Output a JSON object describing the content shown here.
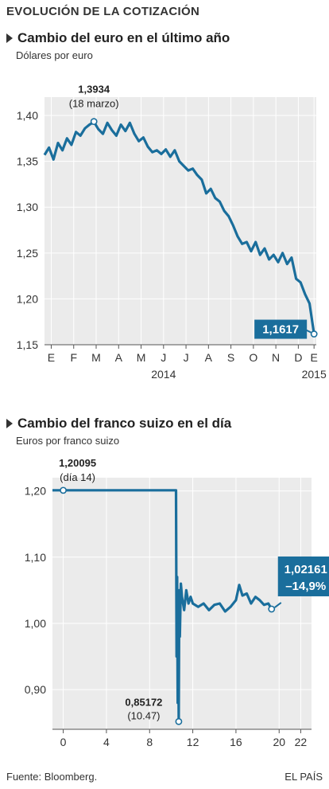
{
  "header": {
    "title": "EVOLUCIÓN DE LA COTIZACIÓN"
  },
  "footer": {
    "source": "Fuente: Bloomberg.",
    "credit": "EL PAÍS"
  },
  "colors": {
    "line": "#1a6e9c",
    "fill": "#ebebeb",
    "grid": "#ffffff",
    "callout_box": "#1a6e9c"
  },
  "chart_data": [
    {
      "type": "line",
      "title": "Cambio del euro en el último año",
      "ylabel": "Dólares por euro",
      "ylim": [
        1.15,
        1.42
      ],
      "yticks": [
        {
          "v": 1.15,
          "label": "1,15"
        },
        {
          "v": 1.2,
          "label": "1,20"
        },
        {
          "v": 1.25,
          "label": "1,25"
        },
        {
          "v": 1.3,
          "label": "1,30"
        },
        {
          "v": 1.35,
          "label": "1,35"
        },
        {
          "v": 1.4,
          "label": "1,40"
        }
      ],
      "xlim": [
        0,
        12.1
      ],
      "xticks": [
        {
          "v": 0.3,
          "label": "E"
        },
        {
          "v": 1.3,
          "label": "F"
        },
        {
          "v": 2.3,
          "label": "M"
        },
        {
          "v": 3.3,
          "label": "A"
        },
        {
          "v": 4.3,
          "label": "M"
        },
        {
          "v": 5.3,
          "label": "J"
        },
        {
          "v": 6.3,
          "label": "J"
        },
        {
          "v": 7.3,
          "label": "A"
        },
        {
          "v": 8.3,
          "label": "S"
        },
        {
          "v": 9.3,
          "label": "O"
        },
        {
          "v": 10.3,
          "label": "N"
        },
        {
          "v": 11.3,
          "label": "D"
        },
        {
          "v": 12.0,
          "label": "E"
        }
      ],
      "year_labels": [
        {
          "v": 5.3,
          "label": "2014"
        },
        {
          "v": 12.0,
          "label": "2015"
        }
      ],
      "x": [
        0.0,
        0.2,
        0.4,
        0.6,
        0.8,
        1.0,
        1.2,
        1.4,
        1.6,
        1.8,
        2.0,
        2.2,
        2.4,
        2.6,
        2.8,
        3.0,
        3.2,
        3.4,
        3.6,
        3.8,
        4.0,
        4.2,
        4.4,
        4.6,
        4.8,
        5.0,
        5.2,
        5.4,
        5.6,
        5.8,
        6.0,
        6.2,
        6.4,
        6.6,
        6.8,
        7.0,
        7.2,
        7.4,
        7.6,
        7.8,
        8.0,
        8.2,
        8.4,
        8.6,
        8.8,
        9.0,
        9.2,
        9.4,
        9.6,
        9.8,
        10.0,
        10.2,
        10.4,
        10.6,
        10.8,
        11.0,
        11.2,
        11.4,
        11.6,
        11.8,
        12.0
      ],
      "y": [
        1.357,
        1.365,
        1.352,
        1.37,
        1.362,
        1.375,
        1.368,
        1.382,
        1.378,
        1.386,
        1.39,
        1.393,
        1.385,
        1.38,
        1.392,
        1.384,
        1.378,
        1.39,
        1.383,
        1.392,
        1.38,
        1.372,
        1.376,
        1.366,
        1.36,
        1.362,
        1.358,
        1.363,
        1.355,
        1.362,
        1.35,
        1.345,
        1.34,
        1.342,
        1.335,
        1.33,
        1.315,
        1.32,
        1.31,
        1.306,
        1.296,
        1.29,
        1.28,
        1.268,
        1.26,
        1.262,
        1.252,
        1.262,
        1.248,
        1.255,
        1.243,
        1.248,
        1.24,
        1.25,
        1.238,
        1.245,
        1.222,
        1.218,
        1.205,
        1.195,
        1.1617
      ],
      "annotations": [
        {
          "x": 2.2,
          "y": 1.3934,
          "value": "1,3934",
          "note": "(18 marzo)"
        },
        {
          "x": 12.0,
          "y": 1.1617,
          "value": "1,1617"
        }
      ]
    },
    {
      "type": "line",
      "title": "Cambio del franco suizo en el día",
      "ylabel": "Euros por franco suizo",
      "ylim": [
        0.84,
        1.22
      ],
      "yticks": [
        {
          "v": 0.9,
          "label": "0,90"
        },
        {
          "v": 1.0,
          "label": "1,00"
        },
        {
          "v": 1.1,
          "label": "1,10"
        },
        {
          "v": 1.2,
          "label": "1,20"
        }
      ],
      "xlim": [
        -1,
        23
      ],
      "xticks": [
        {
          "v": 0,
          "label": "0"
        },
        {
          "v": 4,
          "label": "4"
        },
        {
          "v": 8,
          "label": "8"
        },
        {
          "v": 12,
          "label": "12"
        },
        {
          "v": 16,
          "label": "16"
        },
        {
          "v": 20,
          "label": "20"
        },
        {
          "v": 22,
          "label": "22"
        }
      ],
      "x": [
        -1.0,
        0.0,
        2.0,
        4.0,
        6.0,
        8.0,
        10.2,
        10.45,
        10.5,
        10.55,
        10.6,
        10.65,
        10.7,
        10.75,
        10.8,
        10.9,
        11.0,
        11.2,
        11.4,
        11.6,
        11.8,
        12.0,
        12.5,
        13.0,
        13.5,
        14.0,
        14.5,
        15.0,
        15.5,
        16.0,
        16.3,
        16.6,
        17.0,
        17.4,
        17.8,
        18.2,
        18.6,
        19.0,
        19.3
      ],
      "y": [
        1.201,
        1.20095,
        1.201,
        1.201,
        1.201,
        1.201,
        1.201,
        1.201,
        0.95,
        1.07,
        0.88,
        1.02,
        0.85172,
        1.05,
        0.98,
        1.06,
        1.04,
        1.02,
        1.05,
        1.03,
        1.04,
        1.03,
        1.025,
        1.03,
        1.02,
        1.028,
        1.03,
        1.018,
        1.025,
        1.035,
        1.058,
        1.042,
        1.045,
        1.03,
        1.04,
        1.035,
        1.028,
        1.03,
        1.02161
      ],
      "annotations": [
        {
          "x": 0.0,
          "y": 1.20095,
          "value": "1,20095",
          "note": "(día 14)"
        },
        {
          "x": 10.7,
          "y": 0.85172,
          "value": "0,85172",
          "note": "(10.47)"
        },
        {
          "x": 19.3,
          "y": 1.02161,
          "value": "1,02161",
          "note": "–14,9%"
        }
      ]
    }
  ]
}
